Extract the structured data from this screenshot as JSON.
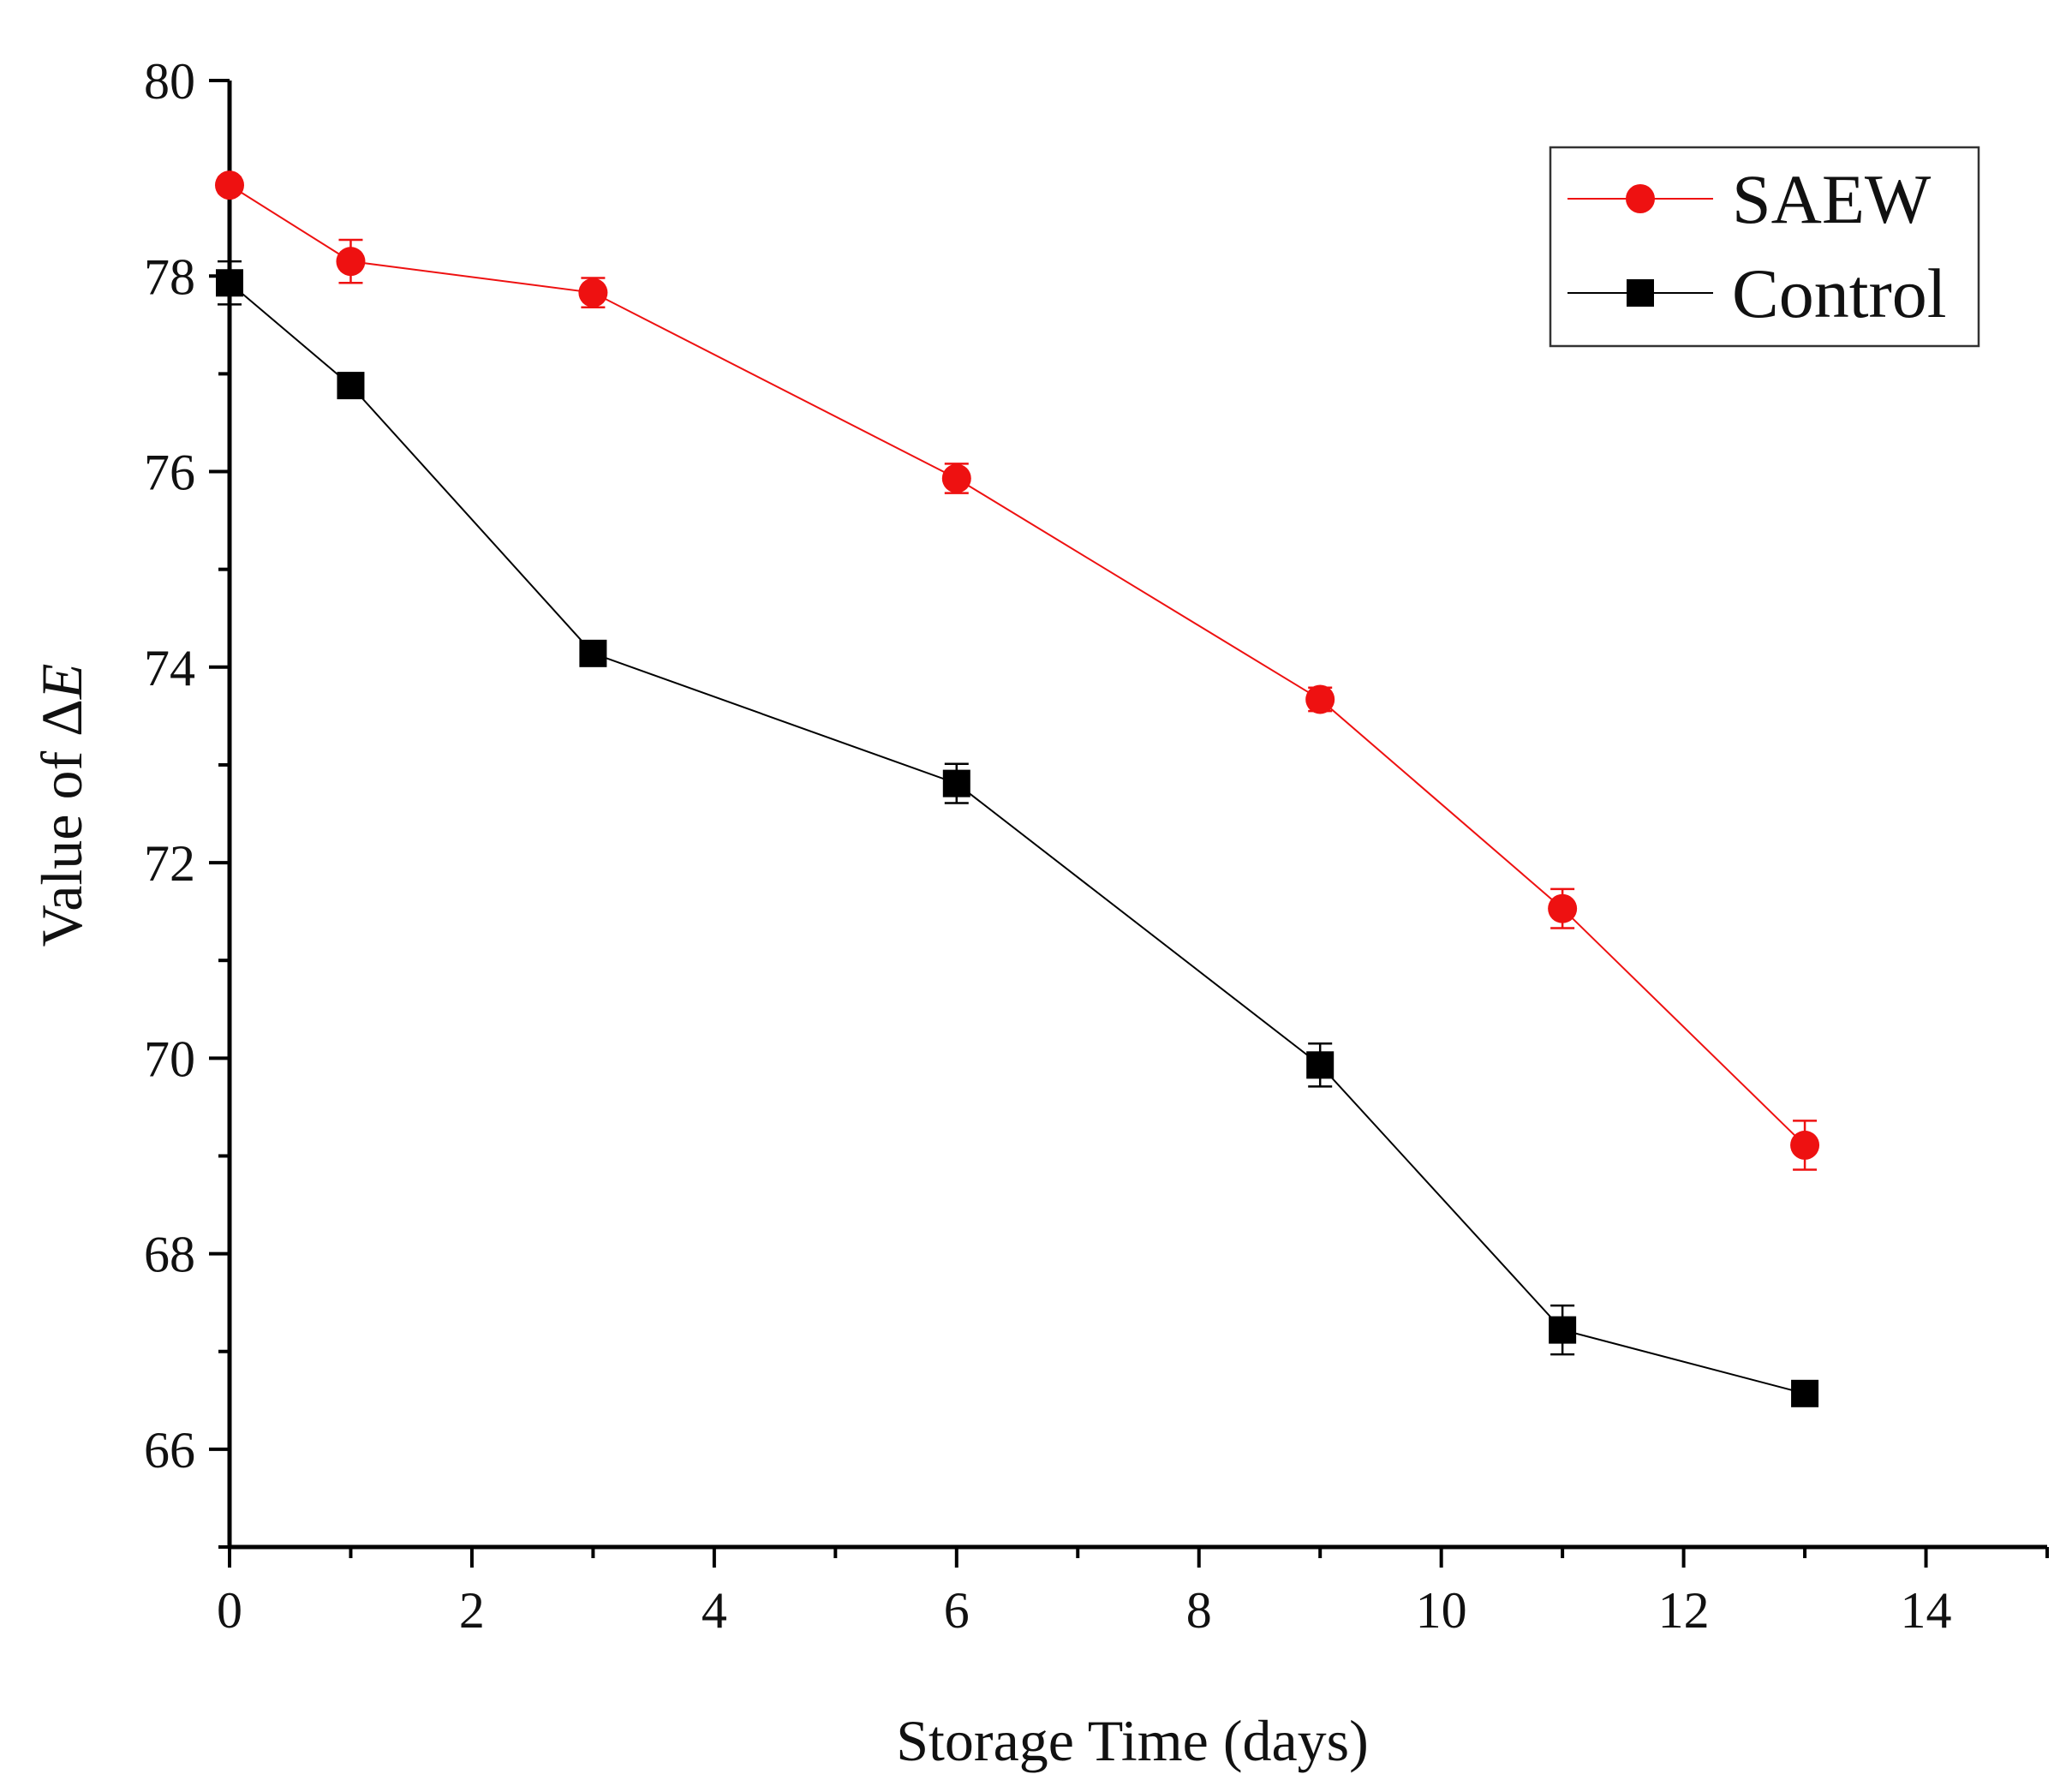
{
  "chart_data": {
    "type": "line",
    "title": "",
    "xlabel": "Storage Time (days)",
    "ylabel_prefix": "Value of Δ",
    "ylabel_symbol": "E",
    "xlim": [
      0,
      15
    ],
    "ylim": [
      65,
      80
    ],
    "x_ticks": [
      0,
      2,
      4,
      6,
      8,
      10,
      12,
      14
    ],
    "x_tick_labels": [
      "0",
      "2",
      "4",
      "6",
      "8",
      "10",
      "12",
      "14"
    ],
    "x_minor_ticks": [
      1,
      3,
      5,
      7,
      9,
      11,
      13,
      15
    ],
    "y_ticks": [
      66,
      68,
      70,
      72,
      74,
      76,
      78,
      80
    ],
    "y_tick_labels": [
      "66",
      "68",
      "70",
      "72",
      "74",
      "76",
      "78",
      "80"
    ],
    "y_minor_ticks": [
      65,
      67,
      69,
      71,
      73,
      75,
      77,
      79
    ],
    "grid": false,
    "legend_position": "top-right",
    "series": [
      {
        "name": "SAEW",
        "marker": "circle",
        "color": "#ee1111",
        "x": [
          0,
          1,
          3,
          6,
          9,
          11,
          13
        ],
        "values": [
          78.93,
          78.15,
          77.83,
          75.93,
          73.67,
          71.53,
          69.11
        ],
        "errors": [
          0.08,
          0.22,
          0.15,
          0.15,
          0.12,
          0.2,
          0.25
        ]
      },
      {
        "name": "Control",
        "marker": "square",
        "color": "#000000",
        "x": [
          0,
          1,
          3,
          6,
          9,
          11,
          13
        ],
        "values": [
          77.93,
          76.88,
          74.14,
          72.81,
          69.93,
          67.22,
          66.57
        ],
        "errors": [
          0.22,
          0.1,
          0.08,
          0.2,
          0.22,
          0.25,
          0.06
        ]
      }
    ]
  }
}
